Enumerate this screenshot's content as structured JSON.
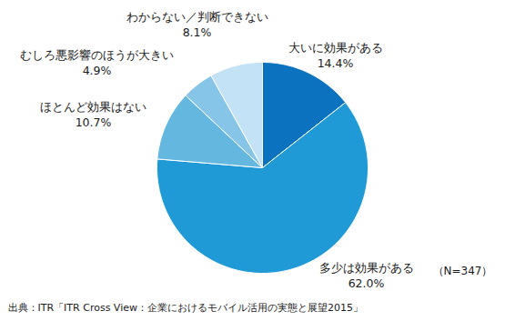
{
  "chart_data": {
    "type": "pie",
    "categories": [
      "大いに効果がある",
      "多少は効果がある",
      "ほとんど効果はない",
      "むしろ悪影響のほうが大きい",
      "わからない／判断できない"
    ],
    "values": [
      14.4,
      62.0,
      10.7,
      4.9,
      8.1
    ],
    "value_labels": [
      "14.4%",
      "62.0%",
      "10.7%",
      "4.9%",
      "8.1%"
    ],
    "colors": [
      "#0a72bf",
      "#1f9ad7",
      "#64b7df",
      "#86c5e8",
      "#c3e2f6"
    ],
    "data_labels": true,
    "annotations": [
      "（N=347）"
    ],
    "source": "出典：ITR「ITR Cross View：企業におけるモバイル活用の実態と展望2015」"
  }
}
